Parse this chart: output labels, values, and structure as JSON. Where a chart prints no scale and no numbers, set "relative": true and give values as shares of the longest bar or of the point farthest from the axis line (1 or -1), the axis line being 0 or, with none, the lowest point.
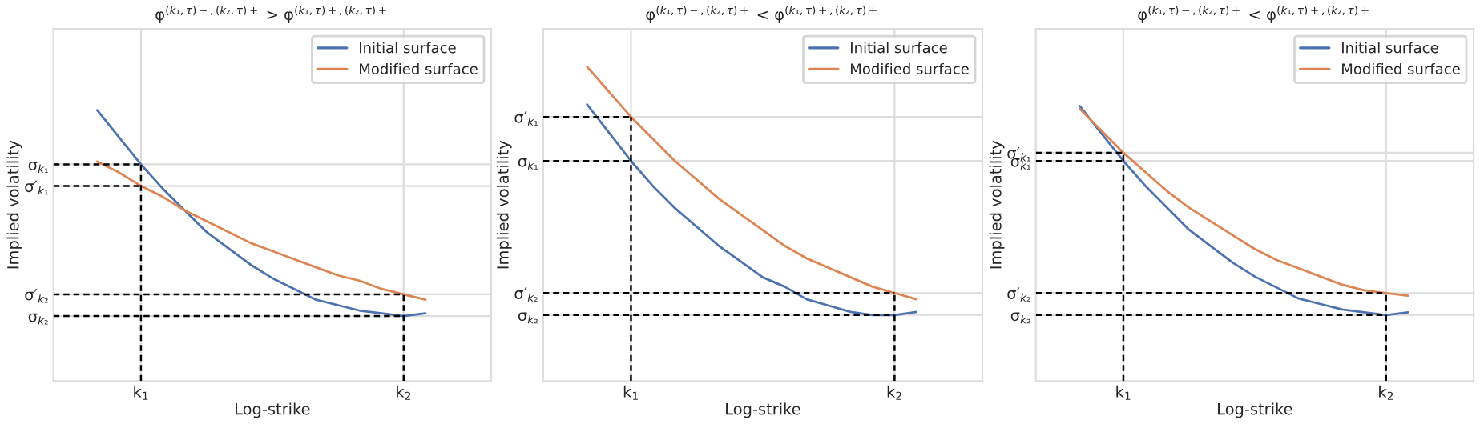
{
  "chart_data": [
    {
      "type": "line",
      "relative": true,
      "title": "φ$^{(k₁,τ)−,(k₂,τ)+}$ > φ$^{(k₁,τ)+,(k₂,τ)+}$",
      "xlabel": "Log-strike",
      "ylabel": "Implied volatility",
      "categories": [
        null,
        null,
        null,
        null,
        "k$_{1}$",
        null,
        null,
        null,
        null,
        null,
        null,
        null,
        null,
        null,
        null,
        null,
        "k$_{2}$",
        null,
        null,
        null,
        null
      ],
      "grid": "x",
      "legend": "top right",
      "ref_lines": [
        {
          "axis": "y",
          "value": 0.8,
          "label": "σ$_{k₁}$",
          "color": "#dddddd"
        },
        {
          "axis": "y",
          "value": 0.72,
          "label": "σ′$_{k₁}$",
          "color": "#dddddd"
        },
        {
          "axis": "y",
          "value": 0.32,
          "label": "σ′$_{k₂}$",
          "color": "#dddddd"
        },
        {
          "axis": "y",
          "value": 0.24,
          "label": "σ$_{k₂}$",
          "color": "#dddddd"
        },
        {
          "axis": "x",
          "value": "k$_{1}$",
          "color": "#000000",
          "line_style": "dashed"
        },
        {
          "axis": "x",
          "value": "k$_{2}$",
          "color": "#000000",
          "line_style": "dashed"
        }
      ],
      "series": [
        {
          "name": "Initial surface",
          "color": "#4c72b0",
          "values": [
            null,
            null,
            1.0,
            0.9,
            0.8,
            0.71,
            0.63,
            0.55,
            0.49,
            0.43,
            0.38,
            0.34,
            0.3,
            0.28,
            0.26,
            0.25,
            0.24,
            0.25,
            null,
            null,
            null
          ]
        },
        {
          "name": "Modified surface",
          "color": "#dd8452",
          "values": [
            null,
            null,
            0.81,
            0.77,
            0.72,
            0.68,
            0.63,
            0.59,
            0.55,
            0.51,
            0.48,
            0.45,
            0.42,
            0.39,
            0.37,
            0.34,
            0.32,
            0.3,
            null,
            null,
            null
          ]
        },
        {
          "color": "#000000",
          "line_style": "dashed",
          "values": [
            0.8,
            0.8,
            0.8,
            0.8,
            0.8,
            null,
            null,
            null,
            null,
            null,
            null,
            null,
            null,
            null,
            null,
            null,
            null,
            null,
            null,
            null,
            null
          ]
        },
        {
          "color": "#000000",
          "line_style": "dashed",
          "values": [
            0.72,
            0.72,
            0.72,
            0.72,
            0.72,
            null,
            null,
            null,
            null,
            null,
            null,
            null,
            null,
            null,
            null,
            null,
            null,
            null,
            null,
            null,
            null
          ]
        },
        {
          "color": "#000000",
          "line_style": "dashed",
          "values": [
            0.32,
            0.32,
            0.32,
            0.32,
            0.32,
            0.32,
            0.32,
            0.32,
            0.32,
            0.32,
            0.32,
            0.32,
            0.32,
            0.32,
            0.32,
            0.32,
            0.32,
            null,
            null,
            null,
            null
          ]
        },
        {
          "color": "#000000",
          "line_style": "dashed",
          "values": [
            0.24,
            0.24,
            0.24,
            0.24,
            0.24,
            0.24,
            0.24,
            0.24,
            0.24,
            0.24,
            0.24,
            0.24,
            0.24,
            0.24,
            0.24,
            0.24,
            0.24,
            null,
            null,
            null,
            null
          ]
        }
      ]
    },
    {
      "type": "line",
      "relative": true,
      "title": "φ$^{(k₁,τ)−,(k₂,τ)+}$ < φ$^{(k₁,τ)+,(k₂,τ)+}$",
      "xlabel": "Log-strike",
      "ylabel": "Implied volatility",
      "categories": [
        null,
        null,
        null,
        null,
        "k$_{1}$",
        null,
        null,
        null,
        null,
        null,
        null,
        null,
        null,
        null,
        null,
        null,
        "k$_{2}$",
        null,
        null,
        null,
        null
      ],
      "grid": "x",
      "legend": "top right",
      "ref_lines": [
        {
          "axis": "y",
          "value": 0.84,
          "label": "σ′$_{k₁}$",
          "color": "#dddddd"
        },
        {
          "axis": "y",
          "value": 0.7,
          "label": "σ$_{k₁}$",
          "color": "#dddddd"
        },
        {
          "axis": "y",
          "value": 0.28,
          "label": "σ′$_{k₂}$",
          "color": "#dddddd"
        },
        {
          "axis": "y",
          "value": 0.21,
          "label": "σ$_{k₂}$",
          "color": "#dddddd"
        },
        {
          "axis": "x",
          "value": "k$_{1}$",
          "color": "#000000",
          "line_style": "dashed"
        },
        {
          "axis": "x",
          "value": "k$_{2}$",
          "color": "#000000",
          "line_style": "dashed"
        }
      ],
      "series": [
        {
          "name": "Initial surface",
          "color": "#4c72b0",
          "values": [
            null,
            null,
            0.88,
            0.79,
            0.7,
            0.62,
            0.55,
            0.49,
            0.43,
            0.38,
            0.33,
            0.3,
            0.26,
            0.24,
            0.22,
            0.21,
            0.21,
            0.22,
            null,
            null,
            null
          ]
        },
        {
          "name": "Modified surface",
          "color": "#dd8452",
          "values": [
            null,
            null,
            1.0,
            0.92,
            0.84,
            0.77,
            0.7,
            0.64,
            0.58,
            0.53,
            0.48,
            0.43,
            0.39,
            0.36,
            0.33,
            0.3,
            0.28,
            0.26,
            null,
            null,
            null
          ]
        },
        {
          "color": "#000000",
          "line_style": "dashed",
          "values": [
            0.84,
            0.84,
            0.84,
            0.84,
            0.84,
            null,
            null,
            null,
            null,
            null,
            null,
            null,
            null,
            null,
            null,
            null,
            null,
            null,
            null,
            null,
            null
          ]
        },
        {
          "color": "#000000",
          "line_style": "dashed",
          "values": [
            0.7,
            0.7,
            0.7,
            0.7,
            0.7,
            null,
            null,
            null,
            null,
            null,
            null,
            null,
            null,
            null,
            null,
            null,
            null,
            null,
            null,
            null,
            null
          ]
        },
        {
          "color": "#000000",
          "line_style": "dashed",
          "values": [
            0.28,
            0.28,
            0.28,
            0.28,
            0.28,
            0.28,
            0.28,
            0.28,
            0.28,
            0.28,
            0.28,
            0.28,
            0.28,
            0.28,
            0.28,
            0.28,
            0.28,
            null,
            null,
            null,
            null
          ]
        },
        {
          "color": "#000000",
          "line_style": "dashed",
          "values": [
            0.21,
            0.21,
            0.21,
            0.21,
            0.21,
            0.21,
            0.21,
            0.21,
            0.21,
            0.21,
            0.21,
            0.21,
            0.21,
            0.21,
            0.21,
            0.21,
            0.21,
            null,
            null,
            null,
            null
          ]
        }
      ]
    },
    {
      "type": "line",
      "relative": true,
      "title": "φ$^{(k₁,τ)−,(k₂,τ)+}$ < φ$^{(k₁,τ)+,(k₂,τ)+}$",
      "xlabel": "Log-strike",
      "ylabel": "Implied volatility",
      "categories": [
        null,
        null,
        null,
        null,
        "k$_{1}$",
        null,
        null,
        null,
        null,
        null,
        null,
        null,
        null,
        null,
        null,
        null,
        "k$_{2}$",
        null,
        null,
        null,
        null
      ],
      "grid": "x",
      "legend": "top right",
      "ref_lines": [
        {
          "axis": "y",
          "value": 0.83,
          "label": "σ′$_{k₁}$",
          "color": "#dddddd"
        },
        {
          "axis": "y",
          "value": 0.8,
          "label": "σ$_{k₁}$",
          "color": "#dddddd"
        },
        {
          "axis": "y",
          "value": 0.32,
          "label": "σ′$_{k₂}$",
          "color": "#dddddd"
        },
        {
          "axis": "y",
          "value": 0.24,
          "label": "σ$_{k₂}$",
          "color": "#dddddd"
        },
        {
          "axis": "x",
          "value": "k$_{1}$",
          "color": "#000000",
          "line_style": "dashed"
        },
        {
          "axis": "x",
          "value": "k$_{2}$",
          "color": "#000000",
          "line_style": "dashed"
        }
      ],
      "series": [
        {
          "name": "Initial surface",
          "color": "#4c72b0",
          "values": [
            null,
            null,
            1.0,
            0.9,
            0.8,
            0.71,
            0.63,
            0.55,
            0.49,
            0.43,
            0.38,
            0.34,
            0.3,
            0.28,
            0.26,
            0.25,
            0.24,
            0.25,
            null,
            null,
            null
          ]
        },
        {
          "name": "Modified surface",
          "color": "#dd8452",
          "values": [
            null,
            null,
            0.99,
            0.91,
            0.83,
            0.76,
            0.69,
            0.63,
            0.58,
            0.53,
            0.48,
            0.44,
            0.41,
            0.38,
            0.35,
            0.33,
            0.32,
            0.31,
            null,
            null,
            null
          ]
        },
        {
          "color": "#000000",
          "line_style": "dashed",
          "values": [
            0.83,
            0.83,
            0.83,
            0.83,
            0.83,
            null,
            null,
            null,
            null,
            null,
            null,
            null,
            null,
            null,
            null,
            null,
            null,
            null,
            null,
            null,
            null
          ]
        },
        {
          "color": "#000000",
          "line_style": "dashed",
          "values": [
            0.8,
            0.8,
            0.8,
            0.8,
            0.8,
            null,
            null,
            null,
            null,
            null,
            null,
            null,
            null,
            null,
            null,
            null,
            null,
            null,
            null,
            null,
            null
          ]
        },
        {
          "color": "#000000",
          "line_style": "dashed",
          "values": [
            0.32,
            0.32,
            0.32,
            0.32,
            0.32,
            0.32,
            0.32,
            0.32,
            0.32,
            0.32,
            0.32,
            0.32,
            0.32,
            0.32,
            0.32,
            0.32,
            0.32,
            null,
            null,
            null,
            null
          ]
        },
        {
          "color": "#000000",
          "line_style": "dashed",
          "values": [
            0.24,
            0.24,
            0.24,
            0.24,
            0.24,
            0.24,
            0.24,
            0.24,
            0.24,
            0.24,
            0.24,
            0.24,
            0.24,
            0.24,
            0.24,
            0.24,
            0.24,
            null,
            null,
            null,
            null
          ]
        }
      ]
    }
  ]
}
